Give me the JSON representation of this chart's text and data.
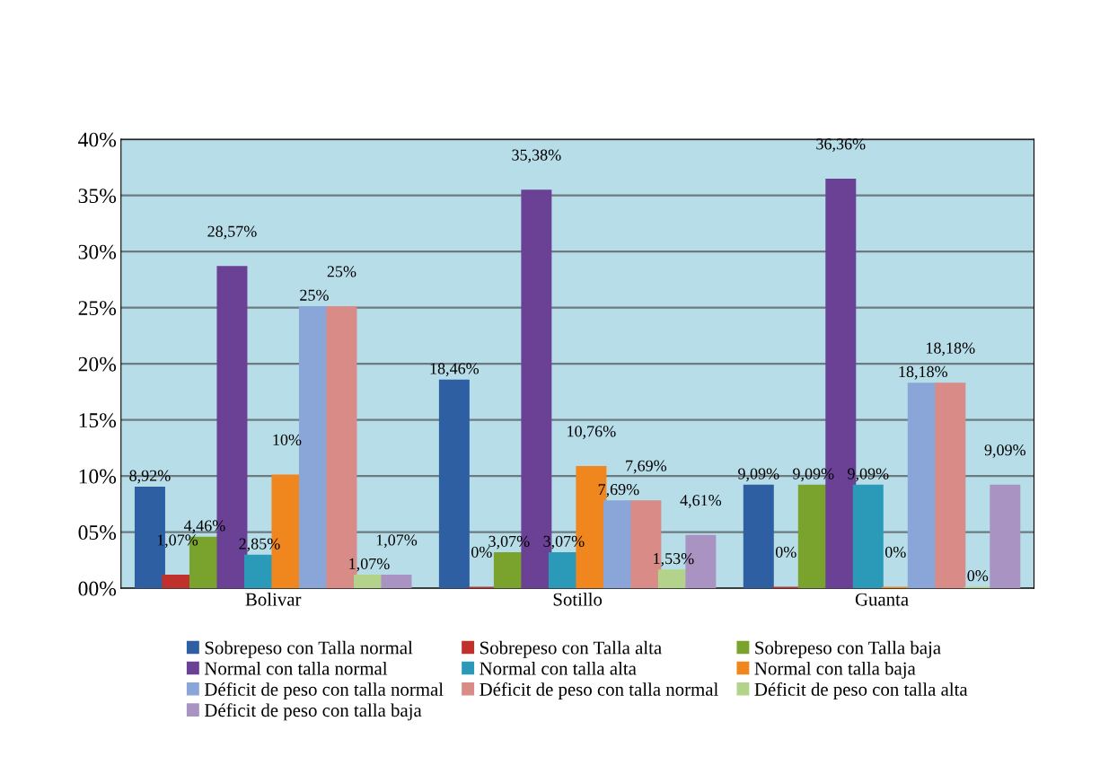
{
  "chart_data": {
    "type": "bar",
    "categories": [
      "Bolivar",
      "Sotillo",
      "Guanta"
    ],
    "ylim": [
      0,
      40
    ],
    "yticks": [
      {
        "value": 0,
        "label": "00%"
      },
      {
        "value": 5,
        "label": "05%"
      },
      {
        "value": 10,
        "label": "10%"
      },
      {
        "value": 15,
        "label": "15%"
      },
      {
        "value": 20,
        "label": "20%"
      },
      {
        "value": 25,
        "label": "25%"
      },
      {
        "value": 30,
        "label": "30%"
      },
      {
        "value": 35,
        "label": "35%"
      },
      {
        "value": 40,
        "label": "40%"
      }
    ],
    "grid": "y",
    "legend": "bottom",
    "series": [
      {
        "name": "Sobrepeso con Talla normal",
        "color": "#2e5fa3",
        "values": [
          8.92,
          18.46,
          9.09
        ],
        "value_labels": [
          "8,92%",
          "18,46%",
          "9,09%"
        ]
      },
      {
        "name": "Sobrepeso con Talla alta",
        "color": "#c0312b",
        "values": [
          1.07,
          0,
          0
        ],
        "value_labels": [
          "1,07%",
          "0%",
          "0%"
        ]
      },
      {
        "name": "Sobrepeso con Talla baja",
        "color": "#7aa32e",
        "values": [
          4.46,
          3.07,
          9.09
        ],
        "value_labels": [
          "4,46%",
          "3,07%",
          "9,09%"
        ]
      },
      {
        "name": "Normal con talla normal",
        "color": "#6a4194",
        "values": [
          28.57,
          35.38,
          36.36
        ],
        "value_labels": [
          "28,57%",
          "35,38%",
          "36,36%"
        ]
      },
      {
        "name": "Normal con talla alta",
        "color": "#2b9ab8",
        "values": [
          2.85,
          3.07,
          9.09
        ],
        "value_labels": [
          "2,85%",
          "3,07%",
          "9,09%"
        ]
      },
      {
        "name": "Normal con talla baja",
        "color": "#f0861e",
        "values": [
          10,
          10.76,
          0
        ],
        "value_labels": [
          "10%",
          "10,76%",
          "0%"
        ]
      },
      {
        "name": "Déficit de peso con talla normal",
        "color": "#8aa6d8",
        "values": [
          25,
          7.69,
          18.18
        ],
        "value_labels": [
          "25%",
          "7,69%",
          "18,18%"
        ]
      },
      {
        "name": "Déficit de peso con talla normal",
        "color": "#d88b87",
        "values": [
          25,
          7.69,
          18.18
        ],
        "value_labels": [
          "25%",
          "7,69%",
          "18,18%"
        ]
      },
      {
        "name": "Déficit de peso con talla alta",
        "color": "#b3d38b",
        "values": [
          1.07,
          1.53,
          0
        ],
        "value_labels": [
          "1,07%",
          "1,53%",
          "0%"
        ]
      },
      {
        "name": "Déficit de peso con talla baja",
        "color": "#a893c2",
        "values": [
          1.07,
          4.61,
          9.09
        ],
        "value_labels": [
          "1,07%",
          "4,61%",
          "9,09%"
        ]
      }
    ]
  }
}
